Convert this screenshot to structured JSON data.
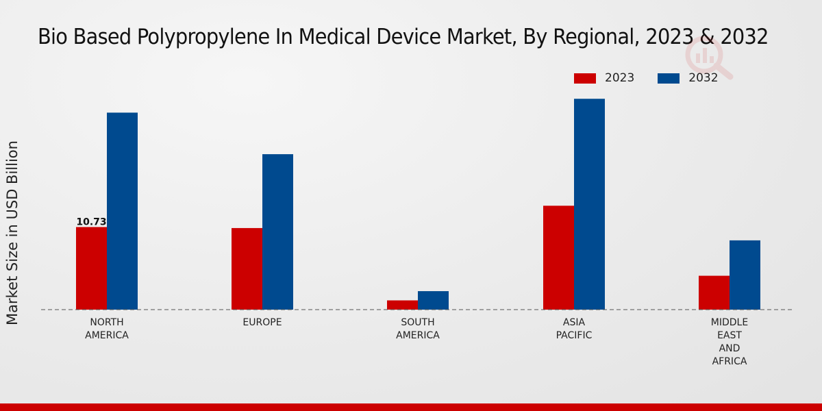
{
  "colors": {
    "series_2023": "#cc0000",
    "series_2032": "#004a8f",
    "brand_bar": "#cc0000"
  },
  "chart_data": {
    "type": "bar",
    "title": "Bio Based Polypropylene In Medical Device Market, By Regional, 2023 & 2032",
    "xlabel": "",
    "ylabel": "Market Size in USD Billion",
    "categories": [
      [
        "NORTH",
        "AMERICA"
      ],
      [
        "EUROPE"
      ],
      [
        "SOUTH",
        "AMERICA"
      ],
      [
        "ASIA",
        "PACIFIC"
      ],
      [
        "MIDDLE",
        "EAST",
        "AND",
        "AFRICA"
      ]
    ],
    "series": [
      {
        "name": "2023",
        "values": [
          10.73,
          10.6,
          1.2,
          13.5,
          4.4
        ]
      },
      {
        "name": "2032",
        "values": [
          25.6,
          20.2,
          2.4,
          27.4,
          9.0
        ]
      }
    ],
    "data_labels": [
      {
        "series": 0,
        "category": 0,
        "text": "10.73"
      }
    ],
    "ylim": [
      0,
      30
    ],
    "legend_position": "top-right",
    "grid": false
  }
}
